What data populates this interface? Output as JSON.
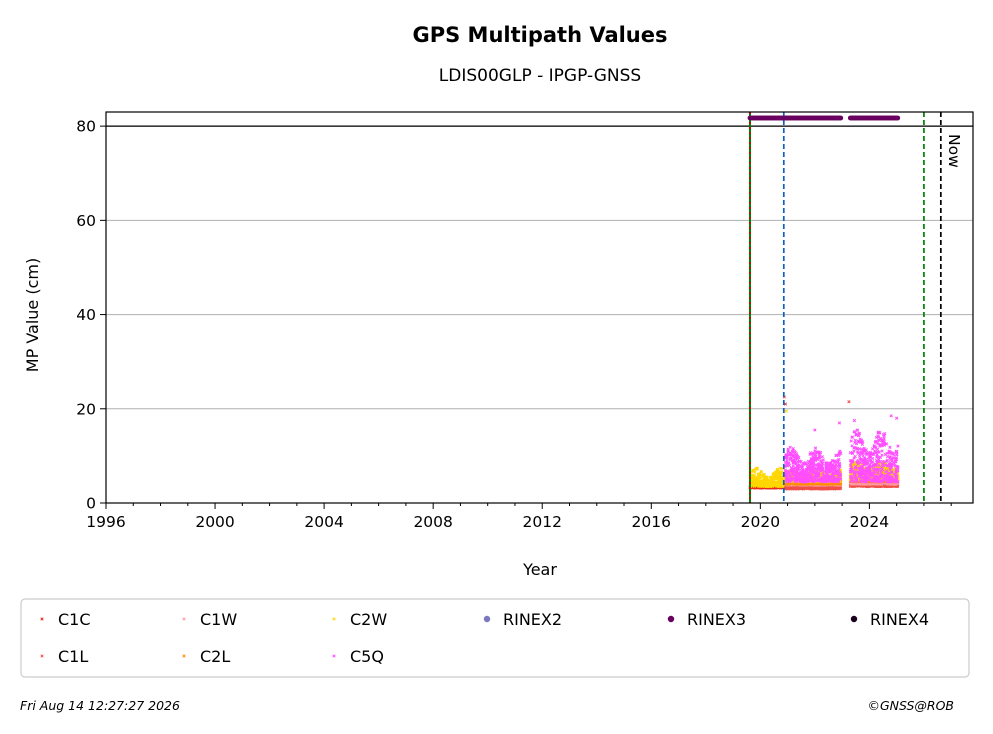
{
  "chart_data": {
    "type": "scatter",
    "title": "GPS Multipath Values",
    "subtitle": "LDIS00GLP - IPGP-GNSS",
    "xlabel": "Year",
    "ylabel": "MP Value (cm)",
    "xlim": [
      1996,
      2027.8
    ],
    "ylim": [
      0,
      83
    ],
    "x_ticks": [
      1996,
      2000,
      2004,
      2008,
      2012,
      2016,
      2020,
      2024
    ],
    "y_ticks": [
      0,
      20,
      40,
      60,
      80
    ],
    "grid": "horizontal",
    "reference_line_y": 80,
    "legend_position": "bottom",
    "now_label": "Now",
    "vertical_lines": [
      {
        "x": 2019.62,
        "color": "#008000",
        "style": "solid"
      },
      {
        "x": 2019.62,
        "color": "#cc0000",
        "style": "dotted"
      },
      {
        "x": 2020.86,
        "color": "#1060c0",
        "style": "dashed"
      },
      {
        "x": 2026.0,
        "color": "#008000",
        "style": "dashed"
      },
      {
        "x": 2026.62,
        "color": "#000000",
        "style": "dashed"
      }
    ],
    "rinex_coverage": [
      {
        "series": "RINEX3",
        "start": 2019.62,
        "end": 2022.95
      },
      {
        "series": "RINEX3",
        "start": 2023.3,
        "end": 2025.05
      }
    ],
    "series": [
      {
        "name": "C1C",
        "color": "#e8281e",
        "marker": "x",
        "segments": [
          {
            "start": 2019.62,
            "end": 2020.85,
            "low": 3.2,
            "high": 4.3
          }
        ]
      },
      {
        "name": "C1L",
        "color": "#f0504a",
        "marker": "x",
        "segments": [
          {
            "start": 2020.9,
            "end": 2022.95,
            "low": 3.0,
            "high": 5.0
          },
          {
            "start": 2023.3,
            "end": 2025.05,
            "low": 3.5,
            "high": 6.0
          }
        ]
      },
      {
        "name": "C1W",
        "color": "#ff9aa2",
        "marker": "x",
        "segments": [
          {
            "start": 2020.9,
            "end": 2022.95,
            "low": 3.8,
            "high": 5.5
          },
          {
            "start": 2023.3,
            "end": 2025.05,
            "low": 4.0,
            "high": 6.5
          }
        ]
      },
      {
        "name": "C2L",
        "color": "#ff8c00",
        "marker": "x",
        "segments": [
          {
            "start": 2020.9,
            "end": 2022.95,
            "low": 4.0,
            "high": 6.0
          },
          {
            "start": 2023.3,
            "end": 2025.05,
            "low": 4.5,
            "high": 7.5
          }
        ]
      },
      {
        "name": "C2W",
        "color": "#ffd700",
        "marker": "x",
        "segments": [
          {
            "start": 2019.62,
            "end": 2020.85,
            "low": 3.5,
            "high": 7.5
          },
          {
            "start": 2020.9,
            "end": 2022.95,
            "low": 4.5,
            "high": 7.0
          },
          {
            "start": 2023.3,
            "end": 2025.05,
            "low": 5.0,
            "high": 9.0
          }
        ]
      },
      {
        "name": "C5Q",
        "color": "#ff4dff",
        "marker": "x",
        "segments": [
          {
            "start": 2020.9,
            "end": 2022.95,
            "low": 4.5,
            "high": 12.0
          },
          {
            "start": 2023.3,
            "end": 2025.05,
            "low": 4.5,
            "high": 16.0
          }
        ]
      }
    ],
    "outliers": [
      {
        "x": 2020.88,
        "y": 22.5,
        "series": "C1L"
      },
      {
        "x": 2020.92,
        "y": 21.0,
        "series": "C1L"
      },
      {
        "x": 2020.95,
        "y": 19.5,
        "series": "C2W"
      },
      {
        "x": 2023.25,
        "y": 21.5,
        "series": "C1L"
      },
      {
        "x": 2022.0,
        "y": 15.5,
        "series": "C5Q"
      },
      {
        "x": 2024.8,
        "y": 18.5,
        "series": "C5Q"
      },
      {
        "x": 2025.0,
        "y": 18.0,
        "series": "C5Q"
      },
      {
        "x": 2022.9,
        "y": 17.0,
        "series": "C5Q"
      },
      {
        "x": 2023.45,
        "y": 17.5,
        "series": "C5Q"
      }
    ],
    "legend": [
      {
        "name": "C1C",
        "color": "#e8281e",
        "marker": "x"
      },
      {
        "name": "C1W",
        "color": "#ff9aa2",
        "marker": "x"
      },
      {
        "name": "C2W",
        "color": "#ffd700",
        "marker": "x"
      },
      {
        "name": "RINEX2",
        "color": "#7b78c0",
        "marker": "dot"
      },
      {
        "name": "RINEX3",
        "color": "#6a0060",
        "marker": "dot"
      },
      {
        "name": "RINEX4",
        "color": "#1a001a",
        "marker": "dot"
      },
      {
        "name": "C1L",
        "color": "#f0504a",
        "marker": "x"
      },
      {
        "name": "C2L",
        "color": "#ff8c00",
        "marker": "x"
      },
      {
        "name": "C5Q",
        "color": "#ff4dff",
        "marker": "x"
      }
    ]
  },
  "footer": {
    "timestamp": "Fri Aug 14 12:27:27 2026",
    "credit": "©GNSS@ROB"
  }
}
